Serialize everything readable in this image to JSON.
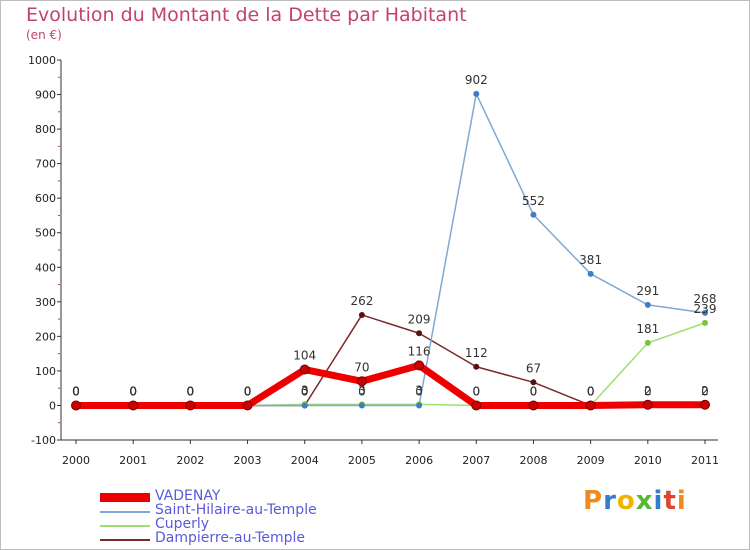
{
  "chart_data": {
    "type": "line",
    "title": "Evolution du Montant de la Dette par Habitant",
    "subtitle": "(en €)",
    "xlabel": "",
    "ylabel": "",
    "ylim": [
      -100,
      1000
    ],
    "yticks": [
      "-100",
      "0",
      "100",
      "200",
      "300",
      "400",
      "500",
      "600",
      "700",
      "800",
      "900",
      "1000"
    ],
    "categories": [
      "2000",
      "2001",
      "2002",
      "2003",
      "2004",
      "2005",
      "2006",
      "2007",
      "2008",
      "2009",
      "2010",
      "2011"
    ],
    "grid": false,
    "legend": "bottom-left",
    "series": [
      {
        "name": "Dampierre-au-Temple",
        "color": "#7a2a2a",
        "marker_color": "#5a1010",
        "values": [
          0,
          0,
          0,
          0,
          0,
          262,
          209,
          112,
          67,
          0,
          0,
          0
        ],
        "labels": [
          "0",
          "0",
          "0",
          "0",
          "0",
          "262",
          "209",
          "112",
          "67",
          "0",
          "0",
          "0"
        ]
      },
      {
        "name": "Cuperly",
        "color": "#9ee06f",
        "marker_color": "#7cc43a",
        "values": [
          0,
          0,
          0,
          0,
          3,
          3,
          3,
          0,
          0,
          0,
          181,
          239
        ],
        "labels": [
          "0",
          "0",
          "0",
          "0",
          "3",
          "3",
          "3",
          "0",
          "0",
          "0",
          "181",
          "239"
        ]
      },
      {
        "name": "Saint-Hilaire-au-Temple",
        "color": "#7fa9d3",
        "marker_color": "#3d7fc4",
        "values": [
          0,
          0,
          0,
          0,
          0,
          0,
          0,
          902,
          552,
          381,
          291,
          268
        ],
        "labels": [
          "0",
          "0",
          "0",
          "0",
          "0",
          "0",
          "0",
          "902",
          "552",
          "381",
          "291",
          "268"
        ]
      },
      {
        "name": "VADENAY",
        "color": "#ee0000",
        "marker_color": "#cc0000",
        "values": [
          0,
          0,
          0,
          0,
          104,
          70,
          116,
          0,
          0,
          0,
          2,
          2
        ],
        "labels": [
          "0",
          "0",
          "0",
          "0",
          "104",
          "70",
          "116",
          "0",
          "0",
          "0",
          "2",
          "2"
        ]
      }
    ]
  },
  "legend_items": [
    {
      "label": "VADENAY",
      "color": "#ee0000"
    },
    {
      "label": "Saint-Hilaire-au-Temple",
      "color": "#7fa9d3"
    },
    {
      "label": "Cuperly",
      "color": "#9ee06f"
    },
    {
      "label": "Dampierre-au-Temple",
      "color": "#7a2a2a"
    }
  ],
  "logo": {
    "letters": [
      "P",
      "r",
      "o",
      "x",
      "i",
      "t",
      "i"
    ],
    "colors": [
      "#f08a1c",
      "#2f7fd0",
      "#f0b400",
      "#5ab835",
      "#2f7fd0",
      "#e2432f",
      "#f08a1c"
    ]
  }
}
